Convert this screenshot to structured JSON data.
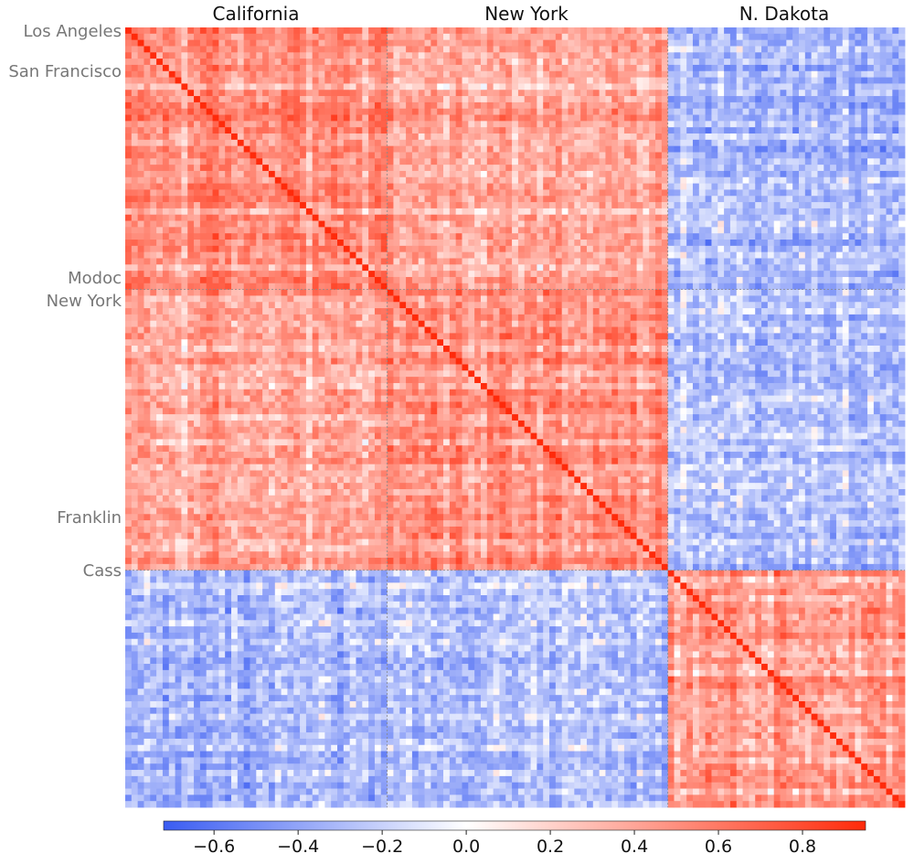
{
  "chart_data": {
    "type": "heatmap",
    "title": "",
    "groups": [
      {
        "name": "California",
        "count": 42,
        "first_label": "Los Angeles",
        "second_label": "San Francisco",
        "last_label": "Modoc"
      },
      {
        "name": "New York",
        "count": 45,
        "first_label": "New York",
        "second_label": "Franklin",
        "second_label_index": 36
      },
      {
        "name": "N. Dakota",
        "count": 38,
        "first_label": "Cass"
      }
    ],
    "column_titles": [
      "California",
      "New York",
      "N. Dakota"
    ],
    "row_labels": [
      {
        "text": "Los Angeles",
        "index": 0
      },
      {
        "text": "San Francisco",
        "index": 6
      },
      {
        "text": "Modoc",
        "index": 41
      },
      {
        "text": "New York",
        "index": 42
      },
      {
        "text": "Franklin",
        "index": 78
      },
      {
        "text": "Cass",
        "index": 87
      }
    ],
    "block_mean_correlation": [
      [
        0.62,
        0.45,
        -0.4
      ],
      [
        0.45,
        0.58,
        -0.35
      ],
      [
        -0.4,
        -0.35,
        0.6
      ]
    ],
    "value_range": [
      -0.72,
      0.95
    ],
    "colormap": {
      "low": "#3a5cf2",
      "mid": "#ffffff",
      "high": "#ff2a0a"
    },
    "colorbar": {
      "ticks": [
        -0.6,
        -0.4,
        -0.2,
        0.0,
        0.2,
        0.4,
        0.6,
        0.8
      ],
      "tick_labels": [
        "−0.6",
        "−0.4",
        "−0.2",
        "0.0",
        "0.2",
        "0.4",
        "0.6",
        "0.8"
      ]
    }
  }
}
